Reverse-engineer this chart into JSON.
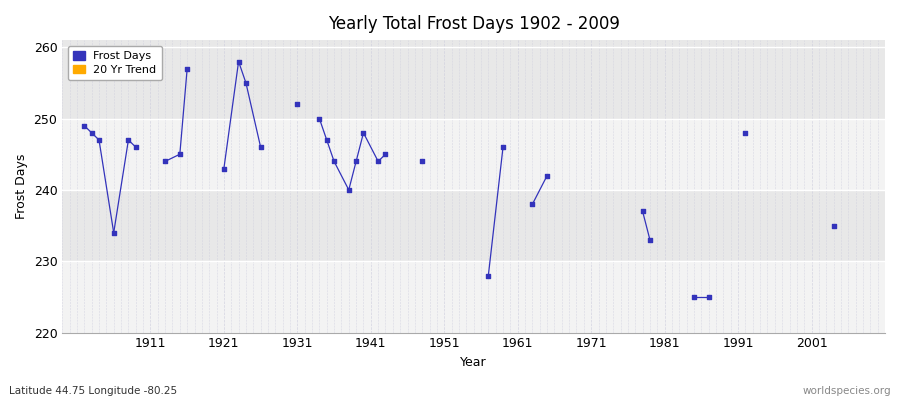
{
  "title": "Yearly Total Frost Days 1902 - 2009",
  "xlabel": "Year",
  "ylabel": "Frost Days",
  "xlim": [
    1899,
    2011
  ],
  "ylim": [
    220,
    261
  ],
  "yticks": [
    220,
    230,
    240,
    250,
    260
  ],
  "xticks": [
    1911,
    1921,
    1931,
    1941,
    1951,
    1961,
    1971,
    1981,
    1991,
    2001
  ],
  "line_color": "#3333bb",
  "point_color": "#3333bb",
  "trend_color": "#ffaa00",
  "subtitle": "Latitude 44.75 Longitude -80.25",
  "watermark": "worldspecies.org",
  "frost_days": {
    "1902": 249,
    "1903": 248,
    "1904": 247,
    "1906": 234,
    "1908": 247,
    "1909": 246,
    "1913": 244,
    "1915": 245,
    "1916": 257,
    "1921": 243,
    "1923": 258,
    "1924": 255,
    "1926": 246,
    "1931": 252,
    "1934": 250,
    "1935": 247,
    "1936": 244,
    "1938": 240,
    "1939": 244,
    "1940": 248,
    "1942": 244,
    "1943": 245,
    "1948": 244,
    "1957": 228,
    "1959": 246,
    "1963": 238,
    "1965": 242,
    "1978": 237,
    "1979": 233,
    "1985": 225,
    "1987": 225,
    "1992": 248,
    "2004": 235
  }
}
